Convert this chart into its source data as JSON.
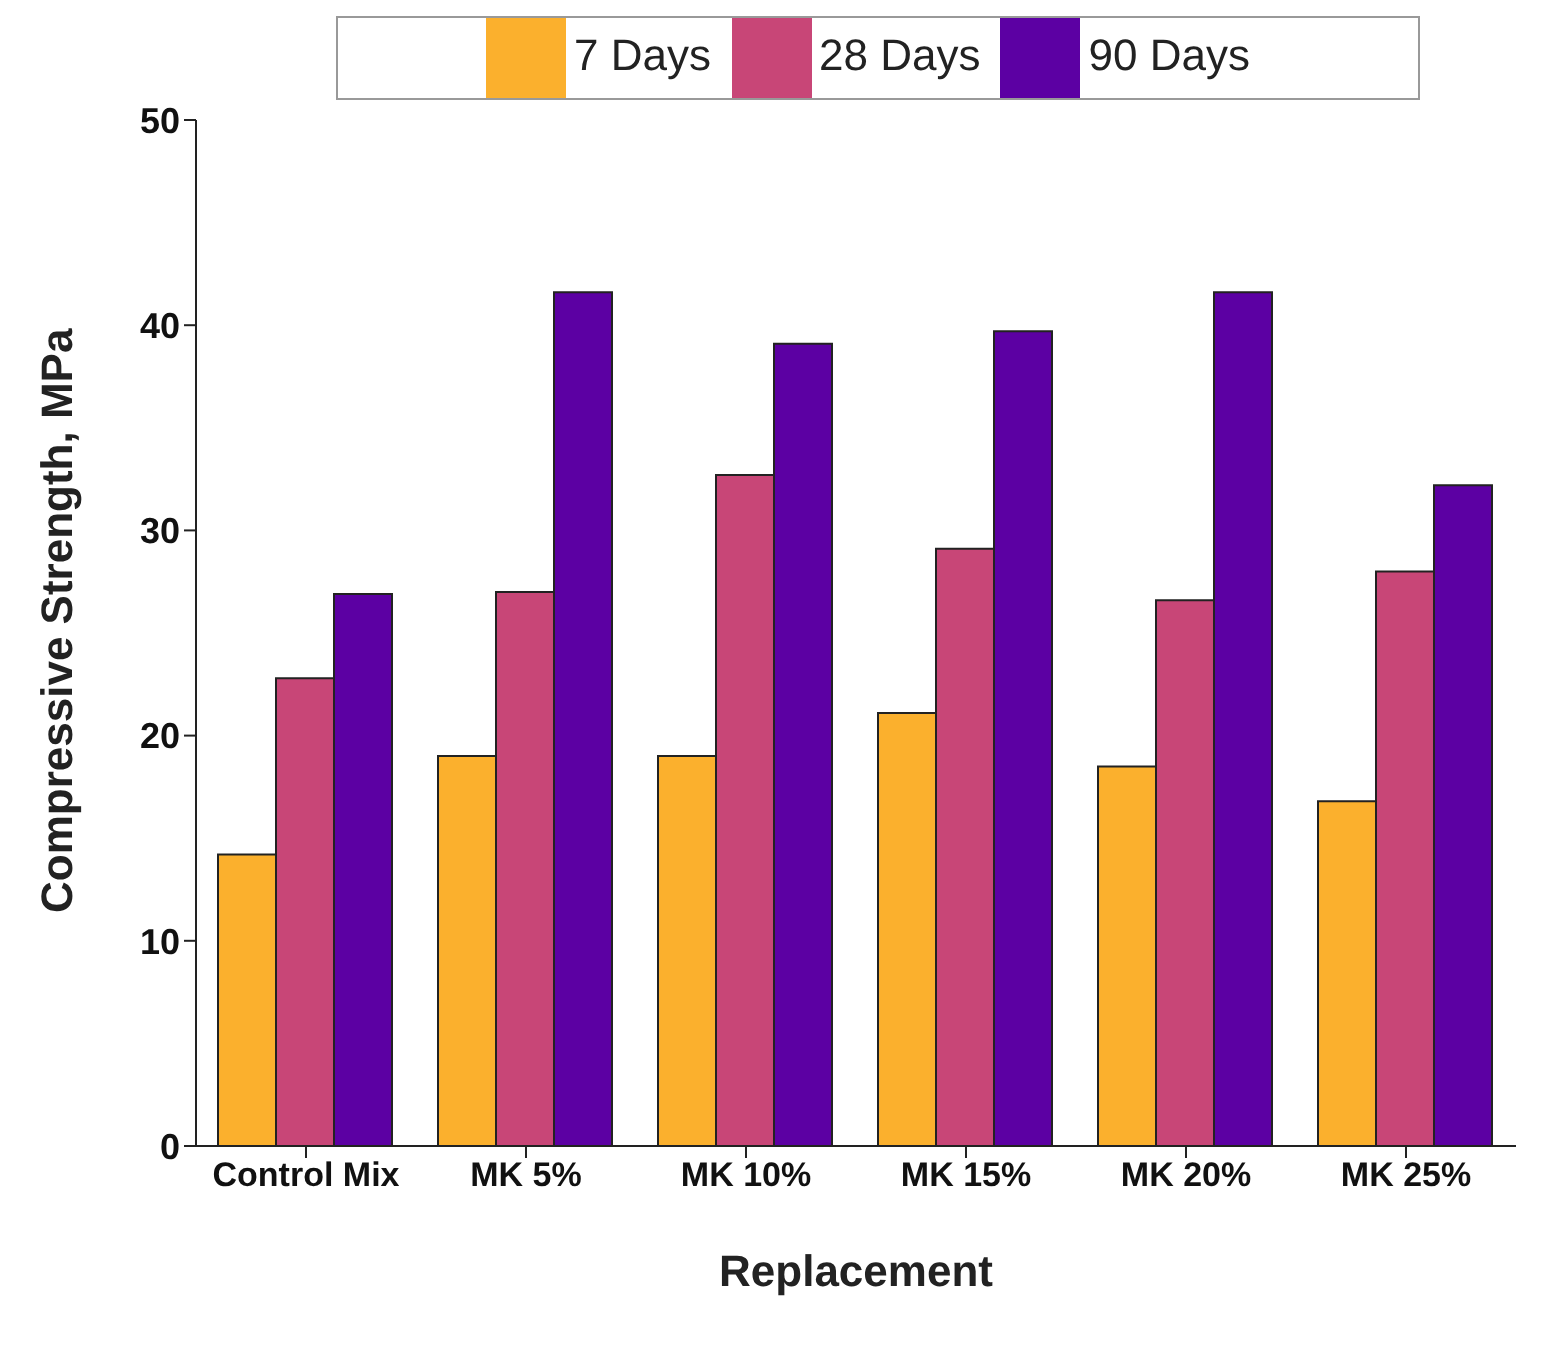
{
  "chart_data": {
    "type": "bar",
    "xlabel": "Replacement",
    "ylabel": "Compressive Strength, MPa",
    "categories": [
      "Control Mix",
      "MK 5%",
      "MK 10%",
      "MK 15%",
      "MK 20%",
      "MK 25%"
    ],
    "series": [
      {
        "name": "7 Days",
        "color": "#fbb02d",
        "values": [
          14.2,
          19.0,
          19.0,
          21.1,
          18.5,
          16.8
        ]
      },
      {
        "name": "28 Days",
        "color": "#c84677",
        "values": [
          22.8,
          27.0,
          32.7,
          29.1,
          26.6,
          28.0
        ]
      },
      {
        "name": "90 Days",
        "color": "#5c00a3",
        "values": [
          26.9,
          41.6,
          39.1,
          39.7,
          41.6,
          32.2
        ]
      }
    ],
    "ylim": [
      0,
      50
    ],
    "yticks": [
      0,
      10,
      20,
      30,
      40,
      50
    ],
    "grid": false,
    "legend": "top"
  }
}
